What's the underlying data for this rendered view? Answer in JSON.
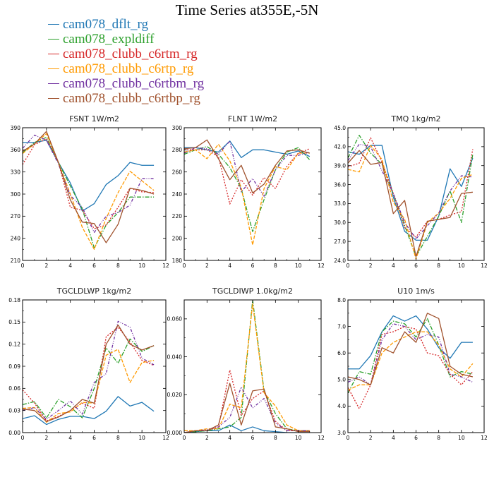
{
  "title": "Time Series at355E,-5N",
  "legend": [
    {
      "label": "cam078_dflt_rg",
      "color": "#1f77b4"
    },
    {
      "label": "cam078_expldiff",
      "color": "#2ca02c"
    },
    {
      "label": "cam078_clubb_c6rtm_rg",
      "color": "#d62728"
    },
    {
      "label": "cam078_clubb_c6rtp_rg",
      "color": "#ff9a00"
    },
    {
      "label": "cam078_clubb_c6rtbm_rg",
      "color": "#7030a0"
    },
    {
      "label": "cam078_clubb_c6rtbp_rg",
      "color": "#a0522d"
    }
  ],
  "chart_data": [
    {
      "type": "line",
      "title": "FSNT   1W/m2",
      "x": [
        0,
        1,
        2,
        3,
        4,
        5,
        6,
        7,
        8,
        9,
        10,
        11
      ],
      "xlim": [
        0,
        12
      ],
      "xticks": [
        0,
        2,
        4,
        6,
        8,
        10,
        12
      ],
      "ylim": [
        210,
        390
      ],
      "yticks": [
        210,
        240,
        270,
        300,
        330,
        360,
        390
      ],
      "ytick_labels": [
        "210",
        "240",
        "270",
        "300",
        "330",
        "360",
        "390"
      ],
      "series": [
        {
          "name": "cam078_dflt_rg",
          "values": [
            370,
            370,
            373,
            343,
            315,
            277,
            287,
            313,
            325,
            343,
            339,
            339
          ]
        },
        {
          "name": "cam078_expldiff",
          "values": [
            356,
            370,
            377,
            343,
            311,
            280,
            227,
            258,
            275,
            296,
            296,
            296
          ]
        },
        {
          "name": "cam078_clubb_c6rtm_rg",
          "values": [
            340,
            367,
            375,
            343,
            282,
            278,
            253,
            258,
            282,
            308,
            303,
            302
          ]
        },
        {
          "name": "cam078_clubb_c6rtp_rg",
          "values": [
            355,
            368,
            382,
            343,
            300,
            255,
            225,
            267,
            302,
            331,
            318,
            305
          ]
        },
        {
          "name": "cam078_clubb_c6rtbm_rg",
          "values": [
            362,
            380,
            373,
            341,
            298,
            282,
            248,
            270,
            275,
            285,
            321,
            321
          ]
        },
        {
          "name": "cam078_clubb_c6rtbp_rg",
          "values": [
            358,
            368,
            385,
            343,
            292,
            262,
            260,
            234,
            259,
            308,
            305,
            300
          ]
        }
      ]
    },
    {
      "type": "line",
      "title": "FLNT   1W/m2",
      "x": [
        0,
        1,
        2,
        3,
        4,
        5,
        6,
        7,
        8,
        9,
        10,
        11
      ],
      "xlim": [
        0,
        12
      ],
      "xticks": [
        0,
        2,
        4,
        6,
        8,
        10,
        12
      ],
      "ylim": [
        180,
        300
      ],
      "yticks": [
        180,
        200,
        220,
        240,
        260,
        280,
        300
      ],
      "ytick_labels": [
        "180",
        "200",
        "220",
        "240",
        "260",
        "280",
        "300"
      ],
      "series": [
        {
          "name": "cam078_dflt_rg",
          "values": [
            282,
            282,
            280,
            278,
            288,
            273,
            280,
            280,
            278,
            276,
            279,
            274
          ]
        },
        {
          "name": "cam078_expldiff",
          "values": [
            276,
            280,
            283,
            276,
            264,
            245,
            206,
            235,
            262,
            278,
            282,
            271
          ]
        },
        {
          "name": "cam078_clubb_c6rtm_rg",
          "values": [
            280,
            280,
            280,
            274,
            231,
            253,
            239,
            255,
            245,
            265,
            277,
            281
          ]
        },
        {
          "name": "cam078_clubb_c6rtp_rg",
          "values": [
            278,
            280,
            272,
            285,
            270,
            246,
            194,
            245,
            265,
            262,
            277,
            277
          ]
        },
        {
          "name": "cam078_clubb_c6rtbm_rg",
          "values": [
            277,
            282,
            281,
            276,
            288,
            242,
            254,
            238,
            262,
            275,
            275,
            278
          ]
        },
        {
          "name": "cam078_clubb_c6rtbp_rg",
          "values": [
            281,
            282,
            289,
            272,
            253,
            266,
            241,
            249,
            266,
            279,
            280,
            277
          ]
        }
      ]
    },
    {
      "type": "line",
      "title": "TMQ   1kg/m2",
      "x": [
        0,
        1,
        2,
        3,
        4,
        5,
        6,
        7,
        8,
        9,
        10,
        11
      ],
      "xlim": [
        0,
        12
      ],
      "xticks": [
        0,
        2,
        4,
        6,
        8,
        10,
        12
      ],
      "ylim": [
        24,
        45
      ],
      "yticks": [
        24,
        27,
        30,
        33,
        36,
        39,
        42,
        45
      ],
      "ytick_labels": [
        "24.0",
        "27.0",
        "30.0",
        "33.0",
        "36.0",
        "39.0",
        "42.0",
        "45.0"
      ],
      "series": [
        {
          "name": "cam078_dflt_rg",
          "values": [
            41.2,
            40.8,
            42.2,
            42.2,
            34.0,
            28.6,
            27.2,
            27.2,
            31.0,
            38.5,
            35.7,
            40.2
          ]
        },
        {
          "name": "cam078_expldiff",
          "values": [
            40.2,
            43.8,
            41.0,
            39.2,
            34.5,
            29.5,
            24.6,
            27.8,
            31.0,
            35.0,
            30.0,
            40.8
          ]
        },
        {
          "name": "cam078_clubb_c6rtm_rg",
          "values": [
            38.8,
            39.4,
            43.4,
            39.6,
            34.6,
            29.2,
            27.7,
            30.2,
            30.5,
            31.2,
            31.7,
            41.6
          ]
        },
        {
          "name": "cam078_clubb_c6rtp_rg",
          "values": [
            38.4,
            38.0,
            42.2,
            40.0,
            33.2,
            30.5,
            24.2,
            30.0,
            31.5,
            33.8,
            37.0,
            37.6
          ]
        },
        {
          "name": "cam078_clubb_c6rtbm_rg",
          "values": [
            39.8,
            42.4,
            42.0,
            38.2,
            34.6,
            30.0,
            27.4,
            29.5,
            31.5,
            35.0,
            37.4,
            37.2
          ]
        },
        {
          "name": "cam078_clubb_c6rtbp_rg",
          "values": [
            39.4,
            41.4,
            39.2,
            39.5,
            31.4,
            33.5,
            24.6,
            30.2,
            30.5,
            30.8,
            34.6,
            34.8
          ]
        }
      ]
    },
    {
      "type": "line",
      "title": "TGCLDLWP   1kg/m2",
      "x": [
        0,
        1,
        2,
        3,
        4,
        5,
        6,
        7,
        8,
        9,
        10,
        11
      ],
      "xlim": [
        0,
        12
      ],
      "xticks": [
        0,
        2,
        4,
        6,
        8,
        10,
        12
      ],
      "ylim": [
        0,
        0.18
      ],
      "yticks": [
        0,
        0.03,
        0.06,
        0.09,
        0.12,
        0.15,
        0.18
      ],
      "ytick_labels": [
        "0.00",
        "0.03",
        "0.06",
        "0.09",
        "0.12",
        "0.15",
        "0.18"
      ],
      "series": [
        {
          "name": "cam078_dflt_rg",
          "values": [
            0.019,
            0.023,
            0.011,
            0.018,
            0.022,
            0.022,
            0.019,
            0.029,
            0.049,
            0.036,
            0.041,
            0.029
          ]
        },
        {
          "name": "cam078_expldiff",
          "values": [
            0.038,
            0.042,
            0.02,
            0.045,
            0.035,
            0.02,
            0.06,
            0.115,
            0.094,
            0.127,
            0.11,
            0.118
          ]
        },
        {
          "name": "cam078_clubb_c6rtm_rg",
          "values": [
            0.058,
            0.04,
            0.016,
            0.022,
            0.03,
            0.04,
            0.033,
            0.13,
            0.143,
            0.123,
            0.098,
            0.091
          ]
        },
        {
          "name": "cam078_clubb_c6rtp_rg",
          "values": [
            0.033,
            0.034,
            0.014,
            0.026,
            0.028,
            0.041,
            0.04,
            0.105,
            0.113,
            0.068,
            0.095,
            0.098
          ]
        },
        {
          "name": "cam078_clubb_c6rtbm_rg",
          "values": [
            0.03,
            0.034,
            0.018,
            0.03,
            0.043,
            0.025,
            0.068,
            0.08,
            0.151,
            0.143,
            0.101,
            0.092
          ]
        },
        {
          "name": "cam078_clubb_c6rtbp_rg",
          "values": [
            0.032,
            0.03,
            0.015,
            0.021,
            0.03,
            0.045,
            0.04,
            0.12,
            0.146,
            0.12,
            0.112,
            0.118
          ]
        }
      ]
    },
    {
      "type": "line",
      "title": "TGCLDIWP   1.0kg/m2",
      "x": [
        0,
        1,
        2,
        3,
        4,
        5,
        6,
        7,
        8,
        9,
        10,
        11
      ],
      "xlim": [
        0,
        12
      ],
      "xticks": [
        0,
        2,
        4,
        6,
        8,
        10,
        12
      ],
      "ylim": [
        0,
        0.07
      ],
      "yticks": [
        0,
        0.02,
        0.04,
        0.06
      ],
      "ytick_labels": [
        "0.000",
        "0.020",
        "0.040",
        "0.060"
      ],
      "series": [
        {
          "name": "cam078_dflt_rg",
          "values": [
            0.0,
            0.0005,
            0.001,
            0.001,
            0.004,
            0.001,
            0.003,
            0.001,
            0.0005,
            0.0,
            0.0,
            0.0
          ]
        },
        {
          "name": "cam078_expldiff",
          "values": [
            0.0,
            0.0005,
            0.001,
            0.002,
            0.003,
            0.008,
            0.07,
            0.022,
            0.01,
            0.002,
            0.001,
            0.001
          ]
        },
        {
          "name": "cam078_clubb_c6rtm_rg",
          "values": [
            0.0,
            0.001,
            0.001,
            0.003,
            0.033,
            0.009,
            0.018,
            0.022,
            0.006,
            0.001,
            0.001,
            0.001
          ]
        },
        {
          "name": "cam078_clubb_c6rtp_rg",
          "values": [
            0.001,
            0.001,
            0.002,
            0.002,
            0.015,
            0.013,
            0.068,
            0.021,
            0.014,
            0.004,
            0.001,
            0.001
          ]
        },
        {
          "name": "cam078_clubb_c6rtbm_rg",
          "values": [
            0.0,
            0.001,
            0.0015,
            0.003,
            0.008,
            0.024,
            0.013,
            0.018,
            0.005,
            0.001,
            0.001,
            0.001
          ]
        },
        {
          "name": "cam078_clubb_c6rtbp_rg",
          "values": [
            0.0,
            0.001,
            0.001,
            0.004,
            0.026,
            0.004,
            0.022,
            0.023,
            0.003,
            0.002,
            0.0005,
            0.0005
          ]
        }
      ]
    },
    {
      "type": "line",
      "title": "U10   1m/s",
      "x": [
        0,
        1,
        2,
        3,
        4,
        5,
        6,
        7,
        8,
        9,
        10,
        11
      ],
      "xlim": [
        0,
        12
      ],
      "xticks": [
        0,
        2,
        4,
        6,
        8,
        10,
        12
      ],
      "ylim": [
        3,
        8
      ],
      "yticks": [
        3,
        4,
        5,
        6,
        7,
        8
      ],
      "ytick_labels": [
        "3.0",
        "4.0",
        "5.0",
        "6.0",
        "7.0",
        "8.0"
      ],
      "series": [
        {
          "name": "cam078_dflt_rg",
          "values": [
            5.4,
            5.4,
            5.9,
            6.8,
            7.4,
            7.2,
            7.4,
            6.9,
            6.2,
            5.8,
            6.4,
            6.4
          ]
        },
        {
          "name": "cam078_expldiff",
          "values": [
            4.5,
            5.3,
            5.2,
            6.8,
            7.2,
            7.1,
            6.6,
            7.3,
            6.3,
            5.1,
            5.3,
            5.2
          ]
        },
        {
          "name": "cam078_clubb_c6rtm_rg",
          "values": [
            4.7,
            3.9,
            4.8,
            6.7,
            6.8,
            7.0,
            6.9,
            6.0,
            5.9,
            5.2,
            4.8,
            5.3
          ]
        },
        {
          "name": "cam078_clubb_c6rtp_rg",
          "values": [
            4.6,
            4.8,
            4.8,
            6.0,
            6.4,
            6.6,
            6.8,
            6.8,
            6.3,
            5.4,
            5.1,
            5.6
          ]
        },
        {
          "name": "cam078_clubb_c6rtbm_rg",
          "values": [
            4.9,
            5.1,
            4.8,
            6.5,
            7.1,
            7.0,
            6.5,
            6.7,
            6.6,
            5.2,
            5.1,
            4.9
          ]
        },
        {
          "name": "cam078_clubb_c6rtbp_rg",
          "values": [
            5.1,
            5.0,
            4.8,
            6.2,
            6.0,
            6.8,
            6.4,
            7.5,
            7.3,
            5.5,
            5.2,
            5.1
          ]
        }
      ]
    }
  ]
}
